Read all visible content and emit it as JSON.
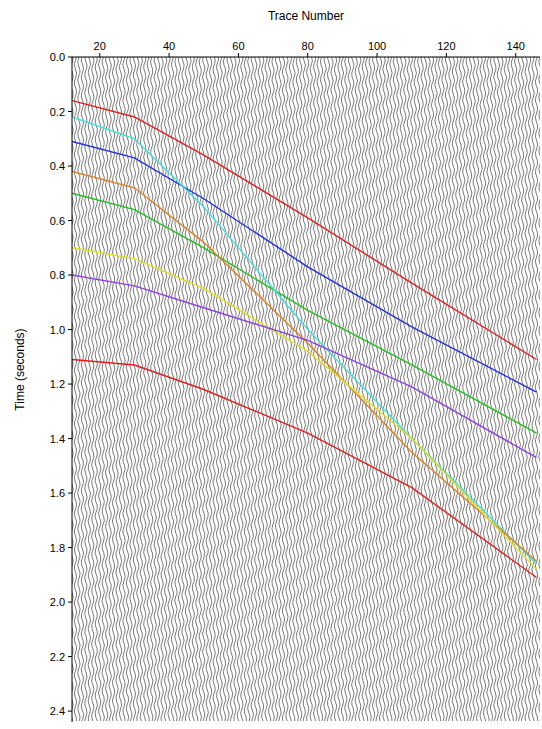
{
  "chart_data": {
    "type": "line",
    "x_label": "Trace Number",
    "y_label": "Time (seconds)",
    "x": [
      12,
      30,
      50,
      80,
      110,
      146
    ],
    "series": [
      {
        "color": "#e02020",
        "values": [
          0.16,
          0.22,
          0.36,
          0.59,
          0.83,
          1.11
        ]
      },
      {
        "color": "#2030e0",
        "values": [
          0.31,
          0.37,
          0.52,
          0.77,
          0.99,
          1.23
        ]
      },
      {
        "color": "#20c020",
        "values": [
          0.5,
          0.56,
          0.7,
          0.93,
          1.13,
          1.38
        ]
      },
      {
        "color": "#40e0e0",
        "values": [
          0.22,
          0.3,
          0.55,
          1.0,
          1.4,
          1.86
        ]
      },
      {
        "color": "#e08020",
        "values": [
          0.42,
          0.48,
          0.68,
          1.05,
          1.45,
          1.85
        ]
      },
      {
        "color": "#e0e020",
        "values": [
          0.7,
          0.74,
          0.85,
          1.08,
          1.4,
          1.88
        ]
      },
      {
        "color": "#9040e0",
        "values": [
          0.8,
          0.84,
          0.92,
          1.04,
          1.21,
          1.47
        ]
      },
      {
        "color": "#e02020",
        "values": [
          1.11,
          1.13,
          1.22,
          1.38,
          1.58,
          1.91
        ]
      }
    ],
    "xlim": [
      12,
      147
    ],
    "ylim": [
      0,
      2.44
    ],
    "xticks": [
      20,
      40,
      60,
      80,
      100,
      120,
      140
    ],
    "yticks": [
      {
        "value": 0,
        "label": "0.0"
      },
      {
        "value": 0.2,
        "label": "0.2"
      },
      {
        "value": 0.4,
        "label": "0.4"
      },
      {
        "value": 0.6,
        "label": "0.6"
      },
      {
        "value": 0.8,
        "label": "0.8"
      },
      {
        "value": 1.0,
        "label": "1.0"
      },
      {
        "value": 1.2,
        "label": "1.2"
      },
      {
        "value": 1.4,
        "label": "1.4"
      },
      {
        "value": 1.6,
        "label": "1.6"
      },
      {
        "value": 1.8,
        "label": "1.8"
      },
      {
        "value": 2.0,
        "label": "2.0"
      },
      {
        "value": 2.2,
        "label": "2.2"
      },
      {
        "value": 2.4,
        "label": "2.4"
      }
    ]
  }
}
